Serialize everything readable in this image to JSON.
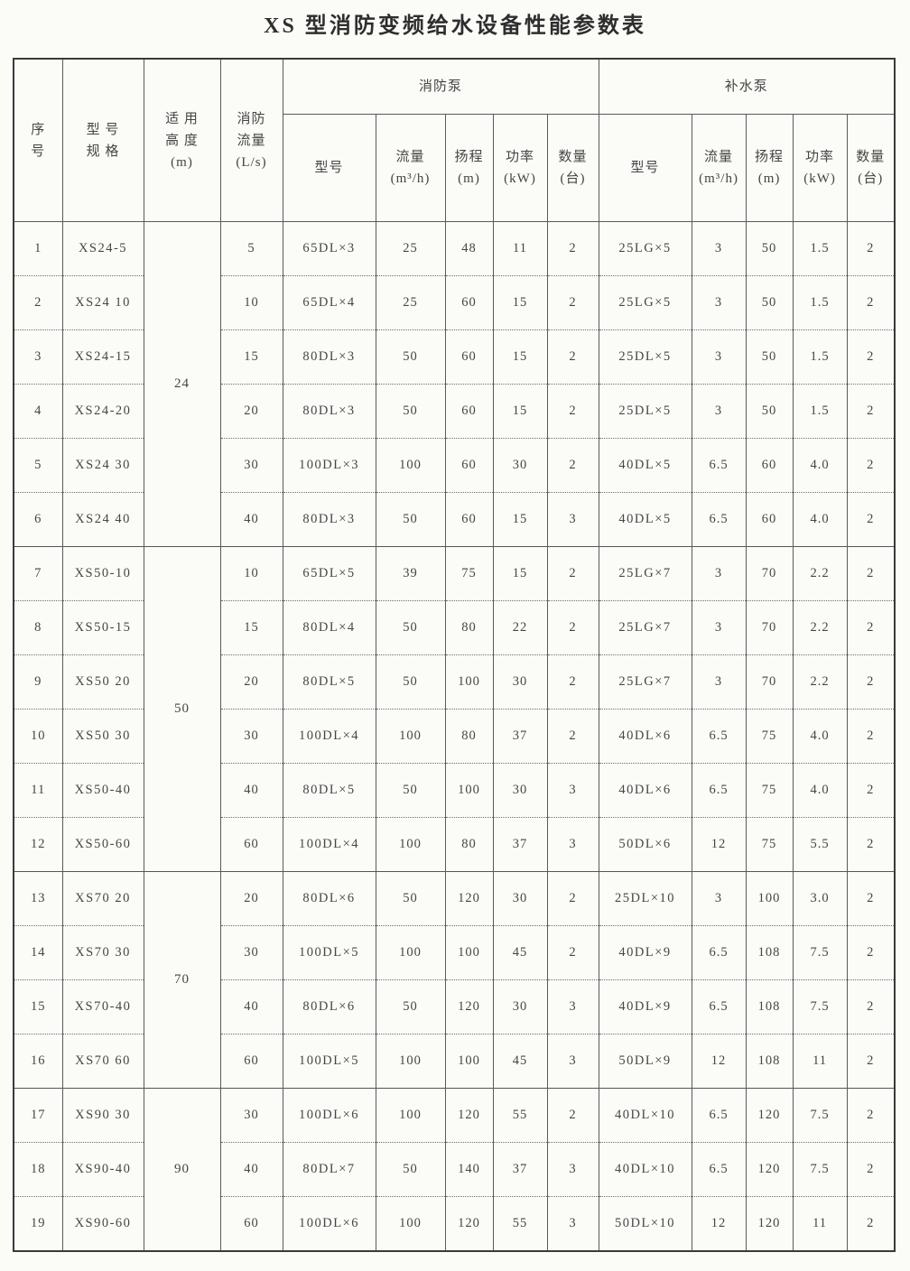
{
  "title": "XS 型消防变频给水设备性能参数表",
  "table": {
    "headers": {
      "serial": "序\n号",
      "model_spec": "型 号\n规 格",
      "height": "适 用\n高 度\n(m)",
      "fire_flow": "消防\n流量\n(L/s)",
      "fire_pump_group": "消防泵",
      "supply_pump_group": "补水泵",
      "sub": {
        "model": "型号",
        "flow": "流量\n(m³/h)",
        "head": "扬程\n(m)",
        "power": "功率\n(kW)",
        "qty": "数量\n(台)"
      }
    },
    "height_groups": [
      {
        "value": "24",
        "rows": 6
      },
      {
        "value": "50",
        "rows": 6
      },
      {
        "value": "70",
        "rows": 4
      },
      {
        "value": "90",
        "rows": 3
      }
    ],
    "rows": [
      {
        "no": "1",
        "model": "XS24-5",
        "flow_ls": "5",
        "fire": [
          "65DL×3",
          "25",
          "48",
          "11",
          "2"
        ],
        "supply": [
          "25LG×5",
          "3",
          "50",
          "1.5",
          "2"
        ]
      },
      {
        "no": "2",
        "model": "XS24 10",
        "flow_ls": "10",
        "fire": [
          "65DL×4",
          "25",
          "60",
          "15",
          "2"
        ],
        "supply": [
          "25LG×5",
          "3",
          "50",
          "1.5",
          "2"
        ]
      },
      {
        "no": "3",
        "model": "XS24-15",
        "flow_ls": "15",
        "fire": [
          "80DL×3",
          "50",
          "60",
          "15",
          "2"
        ],
        "supply": [
          "25DL×5",
          "3",
          "50",
          "1.5",
          "2"
        ]
      },
      {
        "no": "4",
        "model": "XS24-20",
        "flow_ls": "20",
        "fire": [
          "80DL×3",
          "50",
          "60",
          "15",
          "2"
        ],
        "supply": [
          "25DL×5",
          "3",
          "50",
          "1.5",
          "2"
        ]
      },
      {
        "no": "5",
        "model": "XS24 30",
        "flow_ls": "30",
        "fire": [
          "100DL×3",
          "100",
          "60",
          "30",
          "2"
        ],
        "supply": [
          "40DL×5",
          "6.5",
          "60",
          "4.0",
          "2"
        ]
      },
      {
        "no": "6",
        "model": "XS24 40",
        "flow_ls": "40",
        "fire": [
          "80DL×3",
          "50",
          "60",
          "15",
          "3"
        ],
        "supply": [
          "40DL×5",
          "6.5",
          "60",
          "4.0",
          "2"
        ]
      },
      {
        "no": "7",
        "model": "XS50-10",
        "flow_ls": "10",
        "fire": [
          "65DL×5",
          "39",
          "75",
          "15",
          "2"
        ],
        "supply": [
          "25LG×7",
          "3",
          "70",
          "2.2",
          "2"
        ]
      },
      {
        "no": "8",
        "model": "XS50-15",
        "flow_ls": "15",
        "fire": [
          "80DL×4",
          "50",
          "80",
          "22",
          "2"
        ],
        "supply": [
          "25LG×7",
          "3",
          "70",
          "2.2",
          "2"
        ]
      },
      {
        "no": "9",
        "model": "XS50 20",
        "flow_ls": "20",
        "fire": [
          "80DL×5",
          "50",
          "100",
          "30",
          "2"
        ],
        "supply": [
          "25LG×7",
          "3",
          "70",
          "2.2",
          "2"
        ]
      },
      {
        "no": "10",
        "model": "XS50 30",
        "flow_ls": "30",
        "fire": [
          "100DL×4",
          "100",
          "80",
          "37",
          "2"
        ],
        "supply": [
          "40DL×6",
          "6.5",
          "75",
          "4.0",
          "2"
        ]
      },
      {
        "no": "11",
        "model": "XS50-40",
        "flow_ls": "40",
        "fire": [
          "80DL×5",
          "50",
          "100",
          "30",
          "3"
        ],
        "supply": [
          "40DL×6",
          "6.5",
          "75",
          "4.0",
          "2"
        ]
      },
      {
        "no": "12",
        "model": "XS50-60",
        "flow_ls": "60",
        "fire": [
          "100DL×4",
          "100",
          "80",
          "37",
          "3"
        ],
        "supply": [
          "50DL×6",
          "12",
          "75",
          "5.5",
          "2"
        ]
      },
      {
        "no": "13",
        "model": "XS70 20",
        "flow_ls": "20",
        "fire": [
          "80DL×6",
          "50",
          "120",
          "30",
          "2"
        ],
        "supply": [
          "25DL×10",
          "3",
          "100",
          "3.0",
          "2"
        ]
      },
      {
        "no": "14",
        "model": "XS70 30",
        "flow_ls": "30",
        "fire": [
          "100DL×5",
          "100",
          "100",
          "45",
          "2"
        ],
        "supply": [
          "40DL×9",
          "6.5",
          "108",
          "7.5",
          "2"
        ]
      },
      {
        "no": "15",
        "model": "XS70-40",
        "flow_ls": "40",
        "fire": [
          "80DL×6",
          "50",
          "120",
          "30",
          "3"
        ],
        "supply": [
          "40DL×9",
          "6.5",
          "108",
          "7.5",
          "2"
        ]
      },
      {
        "no": "16",
        "model": "XS70 60",
        "flow_ls": "60",
        "fire": [
          "100DL×5",
          "100",
          "100",
          "45",
          "3"
        ],
        "supply": [
          "50DL×9",
          "12",
          "108",
          "11",
          "2"
        ]
      },
      {
        "no": "17",
        "model": "XS90 30",
        "flow_ls": "30",
        "fire": [
          "100DL×6",
          "100",
          "120",
          "55",
          "2"
        ],
        "supply": [
          "40DL×10",
          "6.5",
          "120",
          "7.5",
          "2"
        ]
      },
      {
        "no": "18",
        "model": "XS90-40",
        "flow_ls": "40",
        "fire": [
          "80DL×7",
          "50",
          "140",
          "37",
          "3"
        ],
        "supply": [
          "40DL×10",
          "6.5",
          "120",
          "7.5",
          "2"
        ]
      },
      {
        "no": "19",
        "model": "XS90-60",
        "flow_ls": "60",
        "fire": [
          "100DL×6",
          "100",
          "120",
          "55",
          "3"
        ],
        "supply": [
          "50DL×10",
          "12",
          "120",
          "11",
          "2"
        ]
      }
    ]
  }
}
